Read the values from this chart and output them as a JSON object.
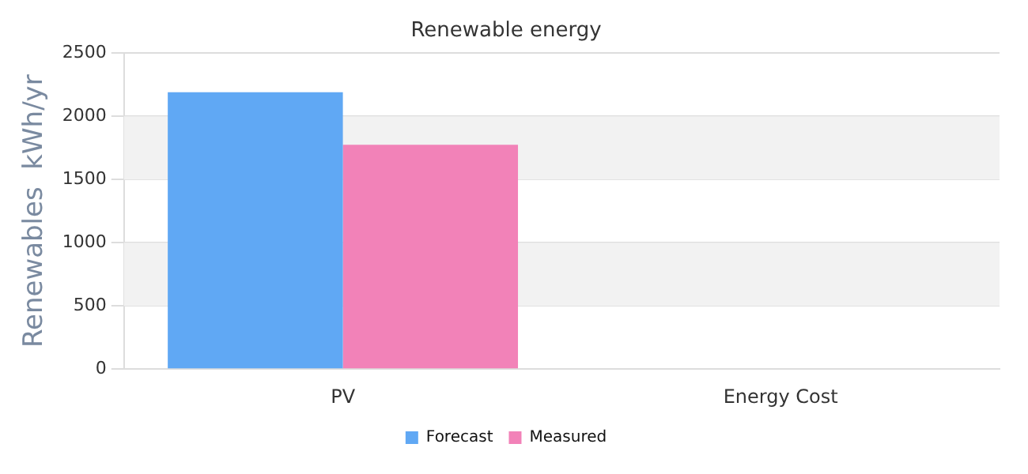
{
  "chart_data": {
    "type": "bar",
    "title": "Renewable energy",
    "ylabel": "Renewables  kWh/yr",
    "categories": [
      "PV",
      "Energy Cost"
    ],
    "series": [
      {
        "name": "Forecast",
        "color": "#60a8f4",
        "values": [
          2190,
          null
        ]
      },
      {
        "name": "Measured",
        "color": "#f282b8",
        "values": [
          1775,
          null
        ]
      }
    ],
    "ylim": [
      0,
      2500
    ],
    "yticks": [
      0,
      500,
      1000,
      1500,
      2000,
      2500
    ],
    "grid": "y",
    "legend": "bottom"
  }
}
